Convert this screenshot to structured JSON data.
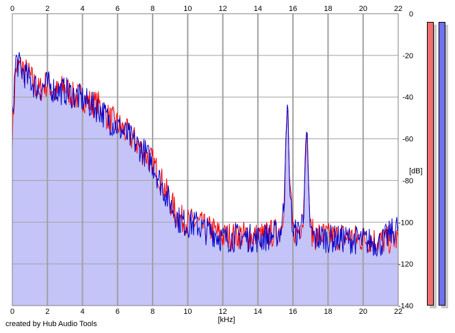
{
  "credit_text": "created by Hub Audio Tools",
  "chart_data": {
    "type": "area",
    "xlabel": "[kHz]",
    "ylabel": "[dB]",
    "xlim": [
      0,
      22
    ],
    "ylim": [
      -140,
      0
    ],
    "x_ticks": [
      0,
      2,
      4,
      6,
      8,
      10,
      12,
      14,
      16,
      18,
      20,
      22
    ],
    "y_ticks": [
      0,
      -20,
      -40,
      -60,
      -80,
      -100,
      -120,
      -140
    ],
    "grid": true,
    "colors": {
      "left": "#ff0000",
      "right": "#0000cc",
      "fill": "#c4c4f8",
      "grid": "#a0a0a0"
    },
    "series": [
      {
        "channel": "left",
        "x": [
          0,
          0.2,
          0.5,
          1.0,
          1.5,
          2.0,
          2.5,
          3.0,
          3.5,
          4.0,
          4.5,
          5.0,
          5.5,
          6.0,
          6.5,
          7.0,
          7.5,
          8.0,
          8.5,
          9.0,
          9.5,
          10.0,
          10.5,
          11.0,
          11.5,
          12.0,
          13.0,
          14.0,
          15.0,
          15.3,
          15.5,
          15.6,
          15.7,
          15.8,
          16.0,
          16.3,
          16.6,
          16.7,
          16.8,
          16.9,
          17.0,
          17.3,
          17.6,
          18.0,
          19.0,
          20.0,
          21.0,
          22.0
        ],
        "values": [
          -58,
          -26,
          -25,
          -30,
          -37,
          -33,
          -38,
          -35,
          -40,
          -40,
          -43,
          -44,
          -50,
          -53,
          -57,
          -61,
          -67,
          -71,
          -80,
          -90,
          -98,
          -100,
          -100,
          -103,
          -104,
          -107,
          -106,
          -107,
          -105,
          -103,
          -90,
          -60,
          -42,
          -80,
          -104,
          -104,
          -98,
          -70,
          -55,
          -85,
          -104,
          -107,
          -106,
          -107,
          -107,
          -108,
          -109,
          -108
        ]
      },
      {
        "channel": "right",
        "x": [
          0,
          0.2,
          0.5,
          1.0,
          1.5,
          2.0,
          2.5,
          3.0,
          3.5,
          4.0,
          4.5,
          5.0,
          5.5,
          6.0,
          6.5,
          7.0,
          7.5,
          8.0,
          8.5,
          9.0,
          9.5,
          10.0,
          10.5,
          11.0,
          11.5,
          12.0,
          13.0,
          14.0,
          15.0,
          15.3,
          15.5,
          15.6,
          15.7,
          15.8,
          16.0,
          16.3,
          16.6,
          16.7,
          16.8,
          16.9,
          17.0,
          17.3,
          17.6,
          18.0,
          19.0,
          20.0,
          21.0,
          22.0
        ],
        "values": [
          -50,
          -22,
          -27,
          -32,
          -36,
          -34,
          -37,
          -37,
          -39,
          -41,
          -44,
          -46,
          -51,
          -54,
          -58,
          -62,
          -66,
          -72,
          -82,
          -91,
          -99,
          -101,
          -101,
          -104,
          -105,
          -108,
          -107,
          -108,
          -106,
          -104,
          -92,
          -58,
          -41,
          -82,
          -105,
          -105,
          -97,
          -68,
          -54,
          -86,
          -105,
          -108,
          -107,
          -108,
          -108,
          -109,
          -110,
          -102
        ]
      }
    ]
  }
}
